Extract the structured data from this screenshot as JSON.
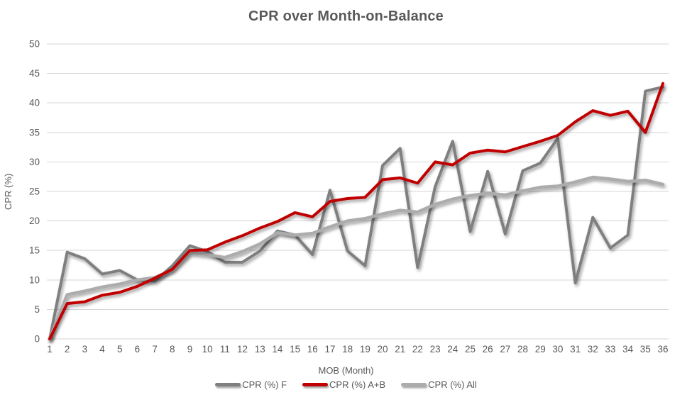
{
  "chart_data": {
    "type": "line",
    "title": "CPR over Month-on-Balance",
    "xlabel": "MOB (Month)",
    "ylabel": "CPR (%)",
    "x": [
      1,
      2,
      3,
      4,
      5,
      6,
      7,
      8,
      9,
      10,
      11,
      12,
      13,
      14,
      15,
      16,
      17,
      18,
      19,
      20,
      21,
      22,
      23,
      24,
      25,
      26,
      27,
      28,
      29,
      30,
      31,
      32,
      33,
      34,
      35,
      36
    ],
    "ylim": [
      0,
      50
    ],
    "y_tick_step": 5,
    "grid": true,
    "legend_position": "bottom",
    "draw_order": [
      0,
      2,
      1
    ],
    "series": [
      {
        "name": "CPR (%) F",
        "color": "#7F7F7F",
        "values": [
          0,
          14.7,
          13.6,
          11.0,
          11.6,
          10.0,
          9.8,
          12.4,
          15.8,
          14.8,
          13.0,
          13.0,
          14.9,
          18.3,
          17.6,
          14.3,
          25.2,
          14.9,
          12.4,
          29.4,
          32.3,
          12.1,
          25.8,
          33.5,
          18.2,
          28.4,
          17.8,
          28.5,
          29.8,
          34.0,
          9.5,
          20.6,
          15.4,
          17.6,
          42.0,
          42.7
        ]
      },
      {
        "name": "CPR (%) A+B",
        "color": "#C00000",
        "values": [
          0,
          6.0,
          6.3,
          7.4,
          7.9,
          8.9,
          10.3,
          11.8,
          15.0,
          15.1,
          16.4,
          17.5,
          18.8,
          19.9,
          21.4,
          20.7,
          23.3,
          23.8,
          24.0,
          27.0,
          27.3,
          26.4,
          30.0,
          29.5,
          31.5,
          32.0,
          31.7,
          32.6,
          33.5,
          34.5,
          36.8,
          38.7,
          37.9,
          38.6,
          35.0,
          43.3
        ]
      },
      {
        "name": "CPR (%) All",
        "color": "#ACACAC",
        "values": [
          0,
          7.5,
          8.1,
          8.8,
          9.3,
          10.0,
          10.4,
          11.7,
          14.6,
          14.3,
          13.8,
          14.8,
          16.1,
          18.0,
          17.6,
          17.9,
          19.0,
          20.0,
          20.4,
          21.2,
          21.8,
          21.5,
          22.8,
          23.7,
          24.3,
          24.7,
          24.4,
          25.1,
          25.7,
          25.9,
          26.6,
          27.4,
          27.1,
          26.7,
          26.9,
          26.2
        ]
      }
    ]
  },
  "colors": {
    "text": "#595959",
    "gridline": "#D6D6D6",
    "background": "#FFFFFF"
  }
}
